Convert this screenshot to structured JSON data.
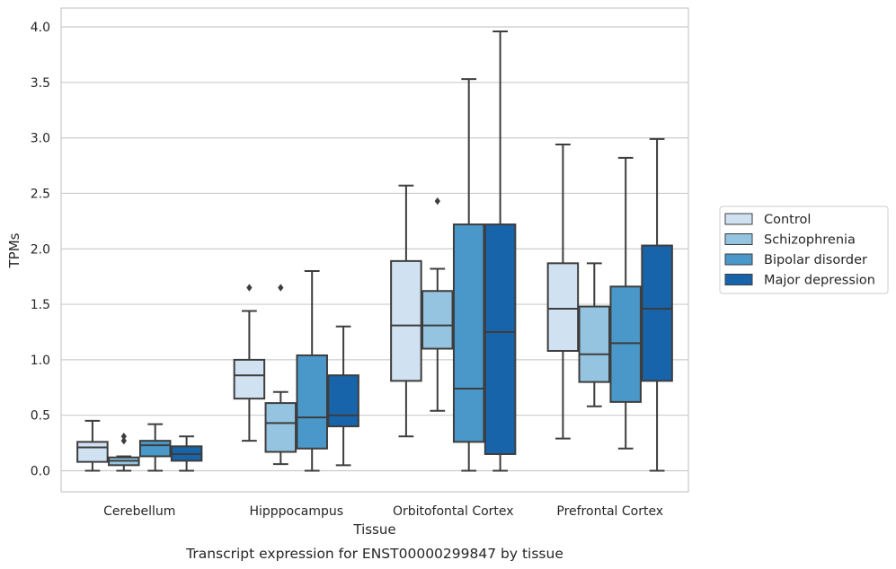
{
  "caption": "Transcript expression for ENST00000299847 by tissue",
  "chart_data": {
    "type": "boxplot",
    "xlabel": "Tissue",
    "ylabel": "TPMs",
    "ylim": [
      -0.19,
      4.17
    ],
    "yticks": [
      "0.0",
      "0.5",
      "1.0",
      "1.5",
      "2.0",
      "2.5",
      "3.0",
      "3.5",
      "4.0"
    ],
    "grid": true,
    "legend_position": "right",
    "categories": [
      "Cerebellum",
      "Hipppocampus",
      "Orbitofontal Cortex",
      "Prefrontal Cortex"
    ],
    "series": [
      {
        "name": "Control",
        "color": "#d0e1f2",
        "boxes": [
          {
            "whisker_low": 0.0,
            "q1": 0.08,
            "median": 0.21,
            "q3": 0.26,
            "whisker_high": 0.45,
            "outliers": []
          },
          {
            "whisker_low": 0.27,
            "q1": 0.65,
            "median": 0.86,
            "q3": 1.0,
            "whisker_high": 1.44,
            "outliers": [
              1.65
            ]
          },
          {
            "whisker_low": 0.31,
            "q1": 0.81,
            "median": 1.31,
            "q3": 1.89,
            "whisker_high": 2.57,
            "outliers": []
          },
          {
            "whisker_low": 0.29,
            "q1": 1.08,
            "median": 1.46,
            "q3": 1.87,
            "whisker_high": 2.94,
            "outliers": []
          }
        ]
      },
      {
        "name": "Schizophrenia",
        "color": "#94c4df",
        "boxes": [
          {
            "whisker_low": 0.0,
            "q1": 0.05,
            "median": 0.09,
            "q3": 0.12,
            "whisker_high": 0.13,
            "outliers": [
              0.27,
              0.31
            ]
          },
          {
            "whisker_low": 0.06,
            "q1": 0.17,
            "median": 0.43,
            "q3": 0.61,
            "whisker_high": 0.71,
            "outliers": [
              1.65
            ]
          },
          {
            "whisker_low": 0.54,
            "q1": 1.1,
            "median": 1.31,
            "q3": 1.62,
            "whisker_high": 1.82,
            "outliers": [
              2.43
            ]
          },
          {
            "whisker_low": 0.58,
            "q1": 0.8,
            "median": 1.05,
            "q3": 1.48,
            "whisker_high": 1.87,
            "outliers": []
          }
        ]
      },
      {
        "name": "Bipolar disorder",
        "color": "#4a98c9",
        "boxes": [
          {
            "whisker_low": 0.0,
            "q1": 0.13,
            "median": 0.23,
            "q3": 0.27,
            "whisker_high": 0.42,
            "outliers": []
          },
          {
            "whisker_low": 0.0,
            "q1": 0.2,
            "median": 0.48,
            "q3": 1.04,
            "whisker_high": 1.8,
            "outliers": []
          },
          {
            "whisker_low": 0.0,
            "q1": 0.26,
            "median": 0.74,
            "q3": 2.22,
            "whisker_high": 3.53,
            "outliers": []
          },
          {
            "whisker_low": 0.2,
            "q1": 0.62,
            "median": 1.15,
            "q3": 1.66,
            "whisker_high": 2.82,
            "outliers": []
          }
        ]
      },
      {
        "name": "Major depression",
        "color": "#1764ab",
        "boxes": [
          {
            "whisker_low": 0.0,
            "q1": 0.09,
            "median": 0.15,
            "q3": 0.22,
            "whisker_high": 0.31,
            "outliers": []
          },
          {
            "whisker_low": 0.05,
            "q1": 0.4,
            "median": 0.5,
            "q3": 0.86,
            "whisker_high": 1.3,
            "outliers": []
          },
          {
            "whisker_low": 0.0,
            "q1": 0.15,
            "median": 1.25,
            "q3": 2.22,
            "whisker_high": 3.96,
            "outliers": []
          },
          {
            "whisker_low": 0.0,
            "q1": 0.81,
            "median": 1.46,
            "q3": 2.03,
            "whisker_high": 2.99,
            "outliers": []
          }
        ]
      }
    ]
  }
}
